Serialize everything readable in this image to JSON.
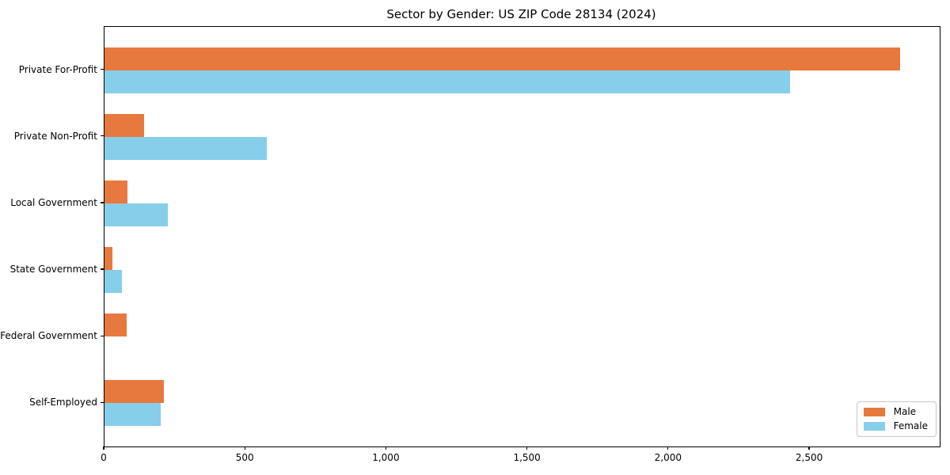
{
  "chart_data": {
    "type": "bar",
    "orientation": "horizontal",
    "title": "Sector by Gender: US ZIP Code 28134 (2024)",
    "categories": [
      "Private For-Profit",
      "Private Non-Profit",
      "Local Government",
      "State Government",
      "Federal Government",
      "Self-Employed"
    ],
    "series": [
      {
        "name": "Male",
        "color": "#e8793e",
        "values": [
          2820,
          140,
          82,
          28,
          78,
          210
        ]
      },
      {
        "name": "Female",
        "color": "#87ceeb",
        "values": [
          2430,
          575,
          224,
          61,
          0,
          198
        ]
      }
    ],
    "xlabel": "",
    "ylabel": "",
    "xlim": [
      0,
      2960
    ],
    "xticks": [
      0,
      500,
      1000,
      1500,
      2000,
      2500
    ],
    "xtick_labels": [
      "0",
      "500",
      "1,000",
      "1,500",
      "2,000",
      "2,500"
    ],
    "grid": false,
    "legend_position": "lower right",
    "plot_border_color": "#000000",
    "background_color": "#ffffff"
  }
}
